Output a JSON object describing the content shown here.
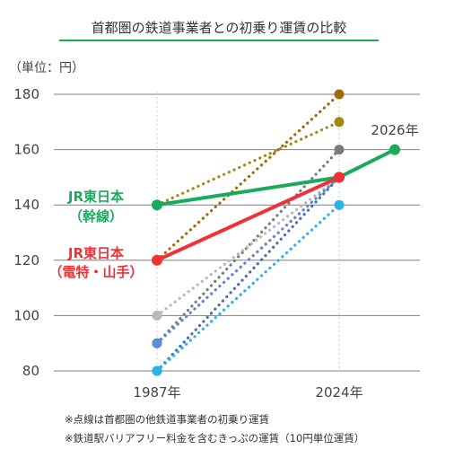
{
  "chart_data": {
    "type": "line",
    "title": "首都圏の鉄道事業者との初乗り運賃の比較",
    "unit_label": "（単位：円）",
    "ylim": [
      80,
      180
    ],
    "yticks": [
      "180",
      "160",
      "140",
      "120",
      "100",
      "80"
    ],
    "x": [
      "1987年",
      "2024年",
      "2026年"
    ],
    "grid": "vertical dotted at 1987年 and 2024年",
    "series": [
      {
        "name": "JR東日本（幹線）",
        "label_lines": [
          "JR東日本",
          "（幹線）"
        ],
        "style": "solid",
        "color": "#18ac5a",
        "points": [
          [
            "1987年",
            140
          ],
          [
            "2024年",
            150
          ],
          [
            "2026年",
            160
          ]
        ]
      },
      {
        "name": "JR東日本（電特・山手）",
        "label_lines": [
          "JR東日本",
          "（電特・山手）"
        ],
        "style": "solid",
        "color": "#ef3237",
        "points": [
          [
            "1987年",
            120
          ],
          [
            "2024年",
            150
          ]
        ]
      },
      {
        "style": "dotted",
        "color": "#a0680a",
        "points": [
          [
            "1987年",
            120
          ],
          [
            "2024年",
            180
          ]
        ]
      },
      {
        "style": "dotted",
        "color": "#a08a12",
        "points": [
          [
            "1987年",
            140
          ],
          [
            "2024年",
            170
          ]
        ]
      },
      {
        "style": "dotted",
        "color": "#7a7a7a",
        "points": [
          [
            "1987年",
            90
          ],
          [
            "2024年",
            160
          ]
        ]
      },
      {
        "style": "dotted",
        "color": "#b9b9b9",
        "points": [
          [
            "1987年",
            100
          ],
          [
            "2024年",
            150
          ]
        ]
      },
      {
        "style": "dotted",
        "color": "#f0924a",
        "points": [
          [
            "1987年",
            90
          ],
          [
            "2024年",
            150
          ]
        ]
      },
      {
        "style": "dotted",
        "color": "#5b8ad6",
        "points": [
          [
            "1987年",
            90
          ],
          [
            "2024年",
            150
          ]
        ]
      },
      {
        "style": "dotted",
        "color": "#4a6ea8",
        "points": [
          [
            "1987年",
            80
          ],
          [
            "2024年",
            150
          ]
        ]
      },
      {
        "style": "dotted",
        "color": "#29b3ea",
        "points": [
          [
            "1987年",
            80
          ],
          [
            "2024年",
            140
          ]
        ]
      }
    ],
    "annotations": [
      "2026年"
    ],
    "notes": [
      "※点線は首都圏の他鉄道事業者の初乗り運賃",
      "※鉄道駅バリアフリー料金を含むきっぷの運賃（10円単位運賃）"
    ]
  }
}
